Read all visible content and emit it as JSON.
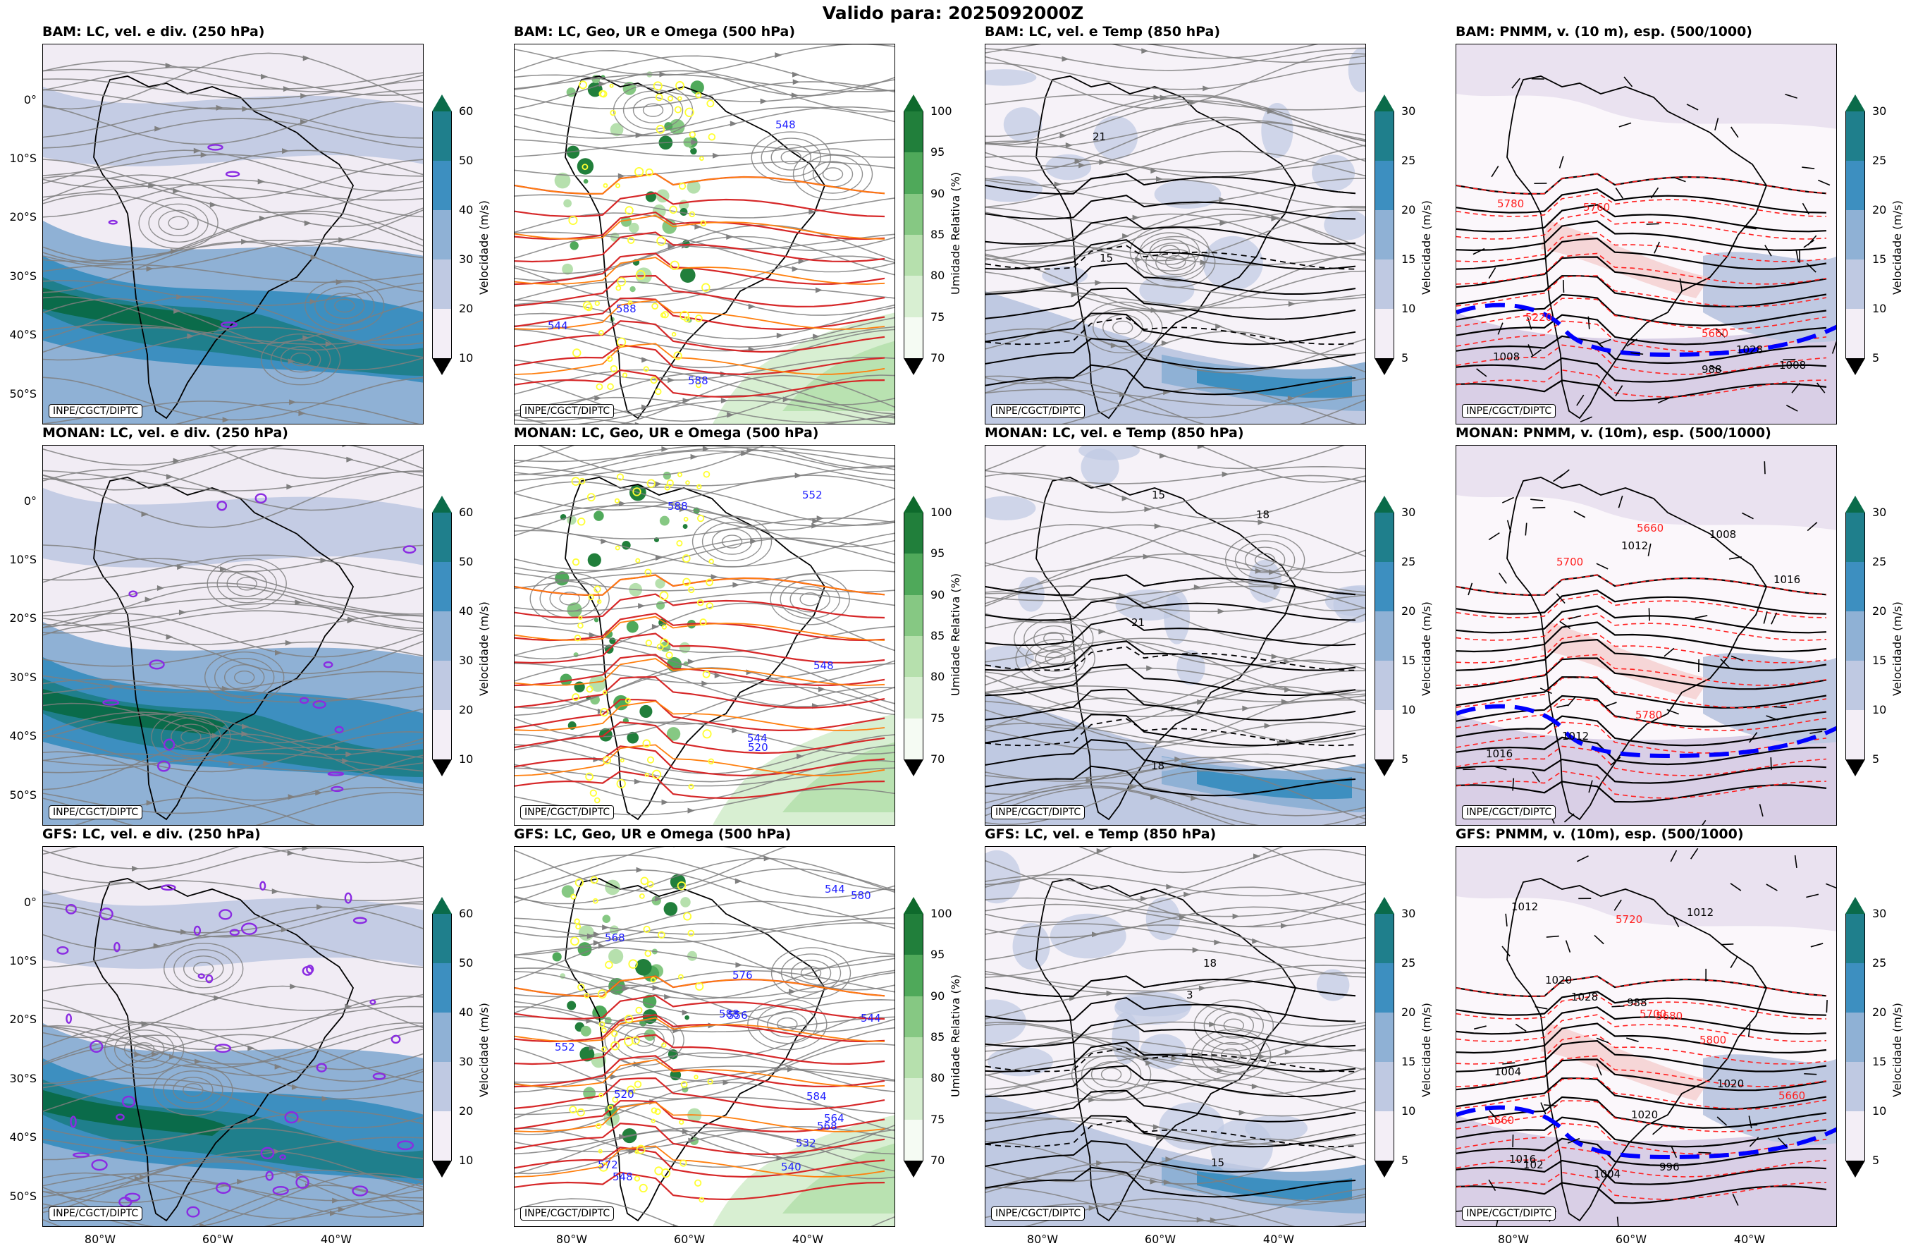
{
  "suptitle": "Valido para: 2025092000Z",
  "credit": "INPE/CGCT/DIPTC",
  "lat_ticks": [
    "0°",
    "10°S",
    "20°S",
    "30°S",
    "40°S",
    "50°S"
  ],
  "lon_ticks": [
    "80°W",
    "60°W",
    "40°W"
  ],
  "colorbars": {
    "wind250": {
      "label": "Velocidade (m/s)",
      "ticks": [
        "10",
        "20",
        "30",
        "40",
        "50",
        "60"
      ],
      "colors": [
        "#f3eef6",
        "#bfc9e2",
        "#8fb1d5",
        "#3d8fc0",
        "#1f7f8c",
        "#0a6b4a"
      ],
      "extend_top": "#0a6b4a",
      "extend_bottom": "#ffffff"
    },
    "rh500": {
      "label": "Umidade Relativa (%)",
      "ticks": [
        "70",
        "75",
        "80",
        "85",
        "90",
        "95",
        "100"
      ],
      "colors": [
        "#f5fbf3",
        "#d8efd2",
        "#b6e0ad",
        "#86c883",
        "#4fa95a",
        "#217f3b"
      ],
      "extend_top": "#0e6a2c",
      "extend_bottom": "#ffffff"
    },
    "wind850": {
      "label": "Velocidade (m/s)",
      "ticks": [
        "5",
        "10",
        "15",
        "20",
        "25",
        "30"
      ],
      "colors": [
        "#f3eef6",
        "#bfc9e2",
        "#8fb1d5",
        "#3d8fc0",
        "#1f7f8c"
      ],
      "extend_top": "#0a6b4a",
      "extend_bottom": "#ffffff"
    }
  },
  "panels": [
    {
      "title": "BAM: LC, vel. e div. (250 hPa)",
      "kind": "wind250",
      "labels": []
    },
    {
      "title": "BAM: LC, Geo, UR e Omega (500 hPa)",
      "kind": "rh500",
      "labels": [
        "588",
        "588",
        "544",
        "548"
      ]
    },
    {
      "title": "BAM: LC, vel. e Temp (850 hPa)",
      "kind": "wind850",
      "labels": [
        "15",
        "21"
      ]
    },
    {
      "title": "BAM: PNMM, v. (10 m), esp. (500/1000)",
      "kind": "pnmm",
      "labels": [
        "5760",
        "5780",
        "1008",
        "1028",
        "1008",
        "5660",
        "5220",
        "988"
      ]
    },
    {
      "title": "MONAN: LC, vel. e div. (250 hPa)",
      "kind": "wind250",
      "labels": []
    },
    {
      "title": "MONAN: LC, Geo, UR e Omega (500 hPa)",
      "kind": "rh500",
      "labels": [
        "588",
        "544",
        "552",
        "548",
        "520"
      ]
    },
    {
      "title": "MONAN: LC, vel. e Temp (850 hPa)",
      "kind": "wind850",
      "labels": [
        "18",
        "15",
        "18",
        "21"
      ]
    },
    {
      "title": "MONAN: PNMM, v. (10m), esp. (500/1000)",
      "kind": "pnmm",
      "labels": [
        "5780",
        "5700",
        "1008",
        "1016",
        "1012",
        "1016",
        "1012",
        "5660"
      ]
    },
    {
      "title": "GFS: LC, vel. e div. (250 hPa)",
      "kind": "wind250",
      "labels": []
    },
    {
      "title": "GFS: LC, Geo, UR e Omega (500 hPa)",
      "kind": "rh500",
      "labels": [
        "588",
        "584",
        "576",
        "580",
        "568",
        "572",
        "556",
        "564",
        "568",
        "540",
        "548",
        "544",
        "532",
        "520",
        "544",
        "552"
      ]
    },
    {
      "title": "GFS: LC, vel. e Temp (850 hPa)",
      "kind": "wind850",
      "labels": [
        "18",
        "15",
        "3"
      ]
    },
    {
      "title": "GFS: PNMM, v. (10m), esp. (500/1000)",
      "kind": "pnmm",
      "labels": [
        "1012",
        "5720",
        "5700",
        "5660",
        "1020",
        "1004",
        "1020",
        "1028",
        "1016",
        "1012",
        "1020",
        "1004",
        "988",
        "996",
        "5680",
        "102",
        "5800",
        "5660"
      ]
    }
  ],
  "colors": {
    "streamline": "#7f7f7f",
    "coast": "#000000",
    "geo_contour": "#d62728",
    "geo_low": "#ff7f0e",
    "geo_label": "#1f1fff",
    "rh_yellow": "#ffff33",
    "thickness": "#ff2020",
    "line_540": "#0000ff",
    "divergence": "#8a2be2"
  }
}
